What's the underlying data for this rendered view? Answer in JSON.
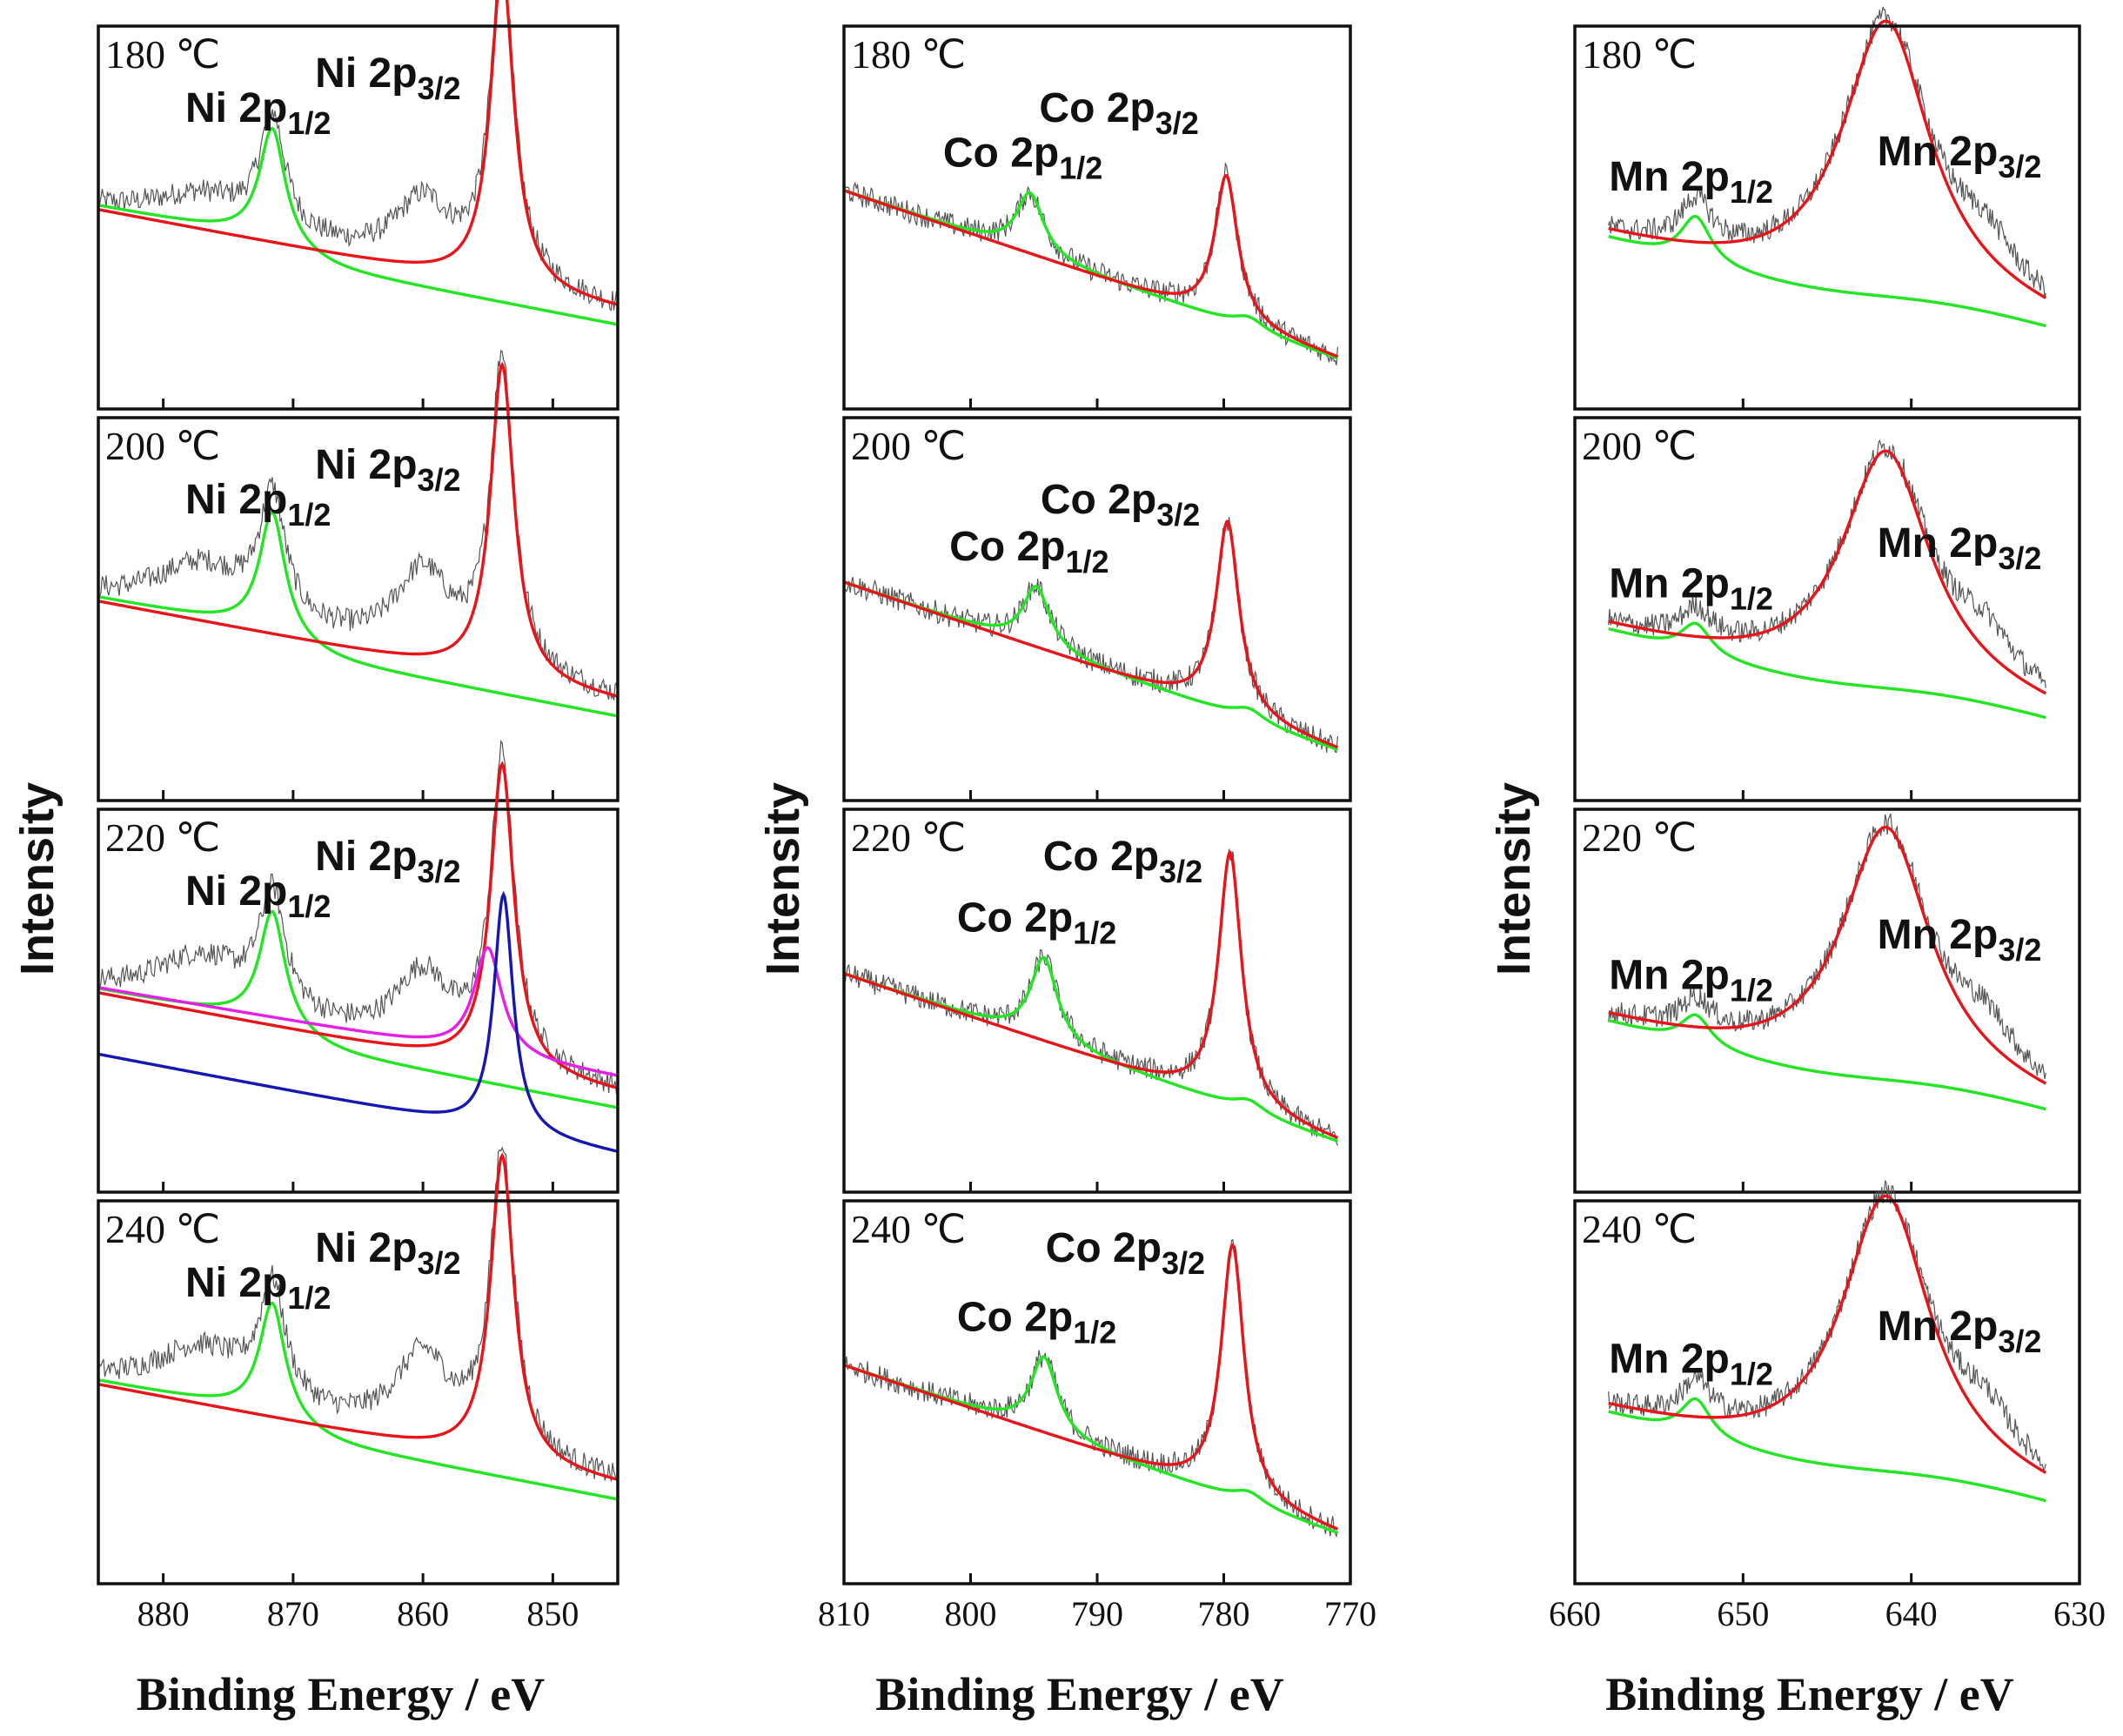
{
  "figure": {
    "ylabel": "Intensity",
    "xlabel": "Binding  Energy / eV",
    "colors": {
      "raw": "#555555",
      "envelope": "#e8141a",
      "background_peak": "#22e622",
      "component_a": "#1616b4",
      "component_b": "#e61ee6"
    }
  },
  "chart_data": [
    {
      "type": "line",
      "element": "Ni",
      "xlim": [
        885,
        845
      ],
      "xticks": [
        880,
        870,
        860,
        850
      ],
      "xlabel": "Binding  Energy / eV",
      "ylabel": "Intensity",
      "panels": [
        {
          "temperature": "180 ℃",
          "peak1_label": "Ni 2p",
          "peak1_sub": "1/2",
          "peak2_label": "Ni 2p",
          "peak2_sub": "3/2",
          "peak1_energy": 871.6,
          "peak2_energy": 853.9,
          "satellite_energy": 860.0,
          "peak1_height": 0.3,
          "peak2_height": 0.84,
          "satellite_height": 0.35
        },
        {
          "temperature": "200 ℃",
          "peak1_label": "Ni 2p",
          "peak1_sub": "1/2",
          "peak2_label": "Ni 2p",
          "peak2_sub": "3/2",
          "peak1_energy": 871.6,
          "peak2_energy": 853.9,
          "satellite_energy": 860.0,
          "peak1_height": 0.32,
          "peak2_height": 0.82,
          "satellite_height": 0.45
        },
        {
          "temperature": "220 ℃",
          "peak1_label": "Ni 2p",
          "peak1_sub": "1/2",
          "peak2_label": "Ni 2p",
          "peak2_sub": "3/2",
          "peak1_energy": 871.6,
          "peak2_energy": 853.9,
          "satellite_energy": 860.0,
          "peak1_height": 0.3,
          "peak2_height": 0.8,
          "satellite_height": 0.4
        },
        {
          "temperature": "240 ℃",
          "peak1_label": "Ni 2p",
          "peak1_sub": "1/2",
          "peak2_label": "Ni 2p",
          "peak2_sub": "3/2",
          "peak1_energy": 871.6,
          "peak2_energy": 853.9,
          "satellite_energy": 860.0,
          "peak1_height": 0.3,
          "peak2_height": 0.8,
          "satellite_height": 0.45
        }
      ]
    },
    {
      "type": "line",
      "element": "Co",
      "xlim": [
        810,
        770
      ],
      "xticks": [
        810,
        800,
        790,
        780,
        770
      ],
      "xlabel": "Binding  Energy / eV",
      "ylabel": "Intensity",
      "panels": [
        {
          "temperature": "180 ℃",
          "peak1_label": "Co 2p",
          "peak1_sub": "1/2",
          "peak2_label": "Co 2p",
          "peak2_sub": "3/2",
          "peak1_energy": 795.3,
          "peak2_energy": 779.8,
          "peak1_height": 0.16,
          "peak2_height": 0.38
        },
        {
          "temperature": "200 ℃",
          "peak1_label": "Co 2p",
          "peak1_sub": "1/2",
          "peak2_label": "Co 2p",
          "peak2_sub": "3/2",
          "peak1_energy": 794.8,
          "peak2_energy": 779.7,
          "peak1_height": 0.16,
          "peak2_height": 0.5
        },
        {
          "temperature": "220 ℃",
          "peak1_label": "Co 2p",
          "peak1_sub": "1/2",
          "peak2_label": "Co 2p",
          "peak2_sub": "3/2",
          "peak1_energy": 794.2,
          "peak2_energy": 779.5,
          "peak1_height": 0.22,
          "peak2_height": 0.66
        },
        {
          "temperature": "240 ℃",
          "peak1_label": "Co 2p",
          "peak1_sub": "1/2",
          "peak2_label": "Co 2p",
          "peak2_sub": "3/2",
          "peak1_energy": 794.2,
          "peak2_energy": 779.3,
          "peak1_height": 0.2,
          "peak2_height": 0.66
        }
      ]
    },
    {
      "type": "line",
      "element": "Mn",
      "xlim": [
        660,
        630
      ],
      "xticks": [
        660,
        650,
        640,
        630
      ],
      "xlabel": "Binding  Energy / eV",
      "ylabel": "Intensity",
      "panels": [
        {
          "temperature": "180 ℃",
          "peak1_label": "Mn 2p",
          "peak1_sub": "1/2",
          "peak2_label": "Mn 2p",
          "peak2_sub": "3/2",
          "peak1_energy": 652.8,
          "peak2_energy": 641.5,
          "peak1_height": 0.12,
          "peak2_height": 0.72
        },
        {
          "temperature": "200 ℃",
          "peak1_label": "Mn 2p",
          "peak1_sub": "1/2",
          "peak2_label": "Mn 2p",
          "peak2_sub": "3/2",
          "peak1_energy": 652.8,
          "peak2_energy": 641.5,
          "peak1_height": 0.08,
          "peak2_height": 0.62
        },
        {
          "temperature": "220 ℃",
          "peak1_label": "Mn 2p",
          "peak1_sub": "1/2",
          "peak2_label": "Mn 2p",
          "peak2_sub": "3/2",
          "peak1_energy": 652.8,
          "peak2_energy": 641.5,
          "peak1_height": 0.08,
          "peak2_height": 0.66
        },
        {
          "temperature": "240 ℃",
          "peak1_label": "Mn 2p",
          "peak1_sub": "1/2",
          "peak2_label": "Mn 2p",
          "peak2_sub": "3/2",
          "peak1_energy": 652.8,
          "peak2_energy": 641.5,
          "peak1_height": 0.1,
          "peak2_height": 0.72
        }
      ]
    }
  ]
}
